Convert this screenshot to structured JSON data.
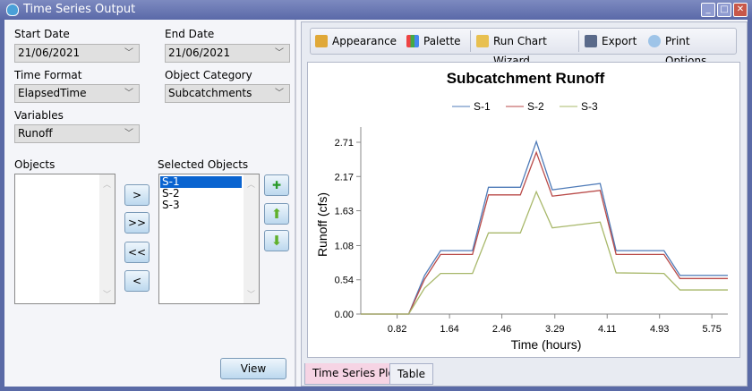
{
  "window": {
    "title": "Time Series Output",
    "minimize": "_",
    "maximize": "□",
    "close": "✕"
  },
  "form": {
    "start_date": {
      "label": "Start Date",
      "value": "21/06/2021"
    },
    "end_date": {
      "label": "End Date",
      "value": "21/06/2021"
    },
    "time_format": {
      "label": "Time Format",
      "value": "ElapsedTime"
    },
    "object_category": {
      "label": "Object Category",
      "value": "Subcatchments"
    },
    "variables": {
      "label": "Variables",
      "value": "Runoff"
    },
    "objects": {
      "label": "Objects",
      "items": []
    },
    "selected_objects": {
      "label": "Selected Objects",
      "items": [
        "S-1",
        "S-2",
        "S-3"
      ],
      "selected": "S-1"
    },
    "buttons": {
      "add": ">",
      "add_all": ">>",
      "remove_all": "<<",
      "remove": "<",
      "view": "View"
    }
  },
  "toolbar": {
    "appearance": "Appearance",
    "palette": "Palette",
    "wizard": "Run Chart Wizard",
    "export": "Export",
    "print": "Print Options"
  },
  "tabs": [
    {
      "label": "Time Series Plot",
      "active": true
    },
    {
      "label": "Table",
      "active": false
    }
  ],
  "chart_data": {
    "type": "line",
    "title": "Subcatchment Runoff",
    "xlabel": "Time (hours)",
    "ylabel": "Runoff (cfs)",
    "legend_position": "top",
    "xlim": [
      0.25,
      6.0
    ],
    "ylim": [
      0,
      2.71
    ],
    "xticks": [
      "0.82",
      "1.64",
      "2.46",
      "3.29",
      "4.11",
      "4.93",
      "5.75"
    ],
    "yticks": [
      "0.00",
      "0.54",
      "1.08",
      "1.63",
      "2.17",
      "2.71"
    ],
    "x": [
      0.25,
      0.5,
      0.75,
      1.0,
      1.25,
      1.5,
      2.0,
      2.25,
      2.75,
      3.0,
      3.25,
      4.0,
      4.25,
      5.0,
      5.25,
      6.0
    ],
    "series": [
      {
        "name": "S-1",
        "color": "#4f7bb8",
        "values": [
          0,
          0,
          0,
          0,
          0.61,
          1.0,
          1.0,
          2.0,
          2.0,
          2.72,
          1.96,
          2.06,
          1.0,
          1.0,
          0.61,
          0.61
        ]
      },
      {
        "name": "S-2",
        "color": "#b94a48",
        "values": [
          0,
          0,
          0,
          0,
          0.55,
          0.94,
          0.94,
          1.88,
          1.88,
          2.55,
          1.86,
          1.95,
          0.94,
          0.94,
          0.56,
          0.56
        ]
      },
      {
        "name": "S-3",
        "color": "#a8b86a",
        "values": [
          0,
          0,
          0,
          0,
          0.41,
          0.64,
          0.64,
          1.28,
          1.28,
          1.93,
          1.36,
          1.45,
          0.65,
          0.64,
          0.38,
          0.38
        ]
      }
    ]
  }
}
